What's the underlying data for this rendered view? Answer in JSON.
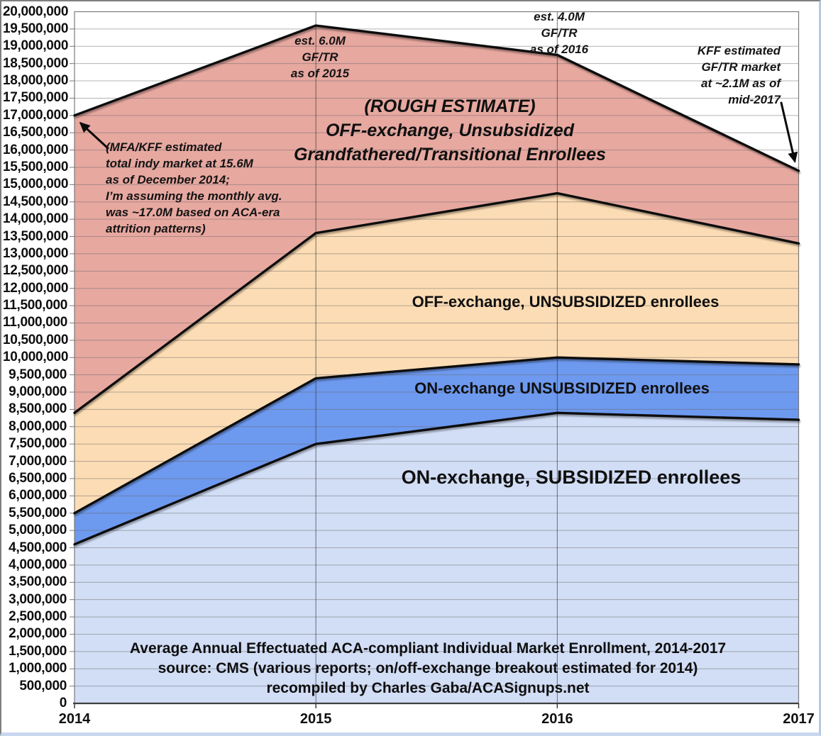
{
  "chart_data": {
    "type": "area",
    "stacked": true,
    "grid": true,
    "legend_position": "none",
    "x_categories": [
      "2014",
      "2015",
      "2016",
      "2017"
    ],
    "y_axis": {
      "min": 0,
      "max": 20000000,
      "step": 500000,
      "tick_format": "comma",
      "zero_label": "0"
    },
    "series": [
      {
        "name": "ON-exchange, SUBSIDIZED enrollees",
        "color": "#d2def6",
        "values": [
          4600000,
          7500000,
          8400000,
          8200000
        ],
        "cumulative": [
          4600000,
          7500000,
          8400000,
          8200000
        ]
      },
      {
        "name": "ON-exchange UNSUBSIDIZED enrollees",
        "color": "#6d99ef",
        "values": [
          900000,
          1900000,
          1600000,
          1600000
        ],
        "cumulative": [
          5500000,
          9400000,
          10000000,
          9800000
        ]
      },
      {
        "name": "OFF-exchange, UNSUBSIDIZED enrollees",
        "color": "#fcdcb4",
        "values": [
          2900000,
          4200000,
          4750000,
          3500000
        ],
        "cumulative": [
          8400000,
          13600000,
          14750000,
          13300000
        ]
      },
      {
        "name": "OFF-exchange, Unsubsidized Grandfathered/Transitional Enrollees (ROUGH ESTIMATE)",
        "color": "#e7a8a0",
        "values": [
          8600000,
          6000000,
          4000000,
          2100000
        ],
        "cumulative": [
          17000000,
          19600000,
          18750000,
          15400000
        ]
      }
    ],
    "area_labels": {
      "gf_tr": {
        "lines": [
          "(ROUGH ESTIMATE)",
          "OFF-exchange, Unsubsidized",
          "Grandfathered/Transitional Enrollees"
        ]
      },
      "off_unsub": {
        "text": "OFF-exchange, UNSUBSIDIZED enrollees"
      },
      "on_unsub": {
        "text": "ON-exchange UNSUBSIDIZED enrollees"
      },
      "on_sub": {
        "text": "ON-exchange, SUBSIDIZED enrollees"
      }
    },
    "annotations": {
      "gf_2015": {
        "lines": [
          "est. 6.0M",
          "GF/TR",
          "as of 2015"
        ]
      },
      "gf_2016": {
        "lines": [
          "est. 4.0M",
          "GF/TR",
          "as of 2016"
        ]
      },
      "kff_2017": {
        "lines": [
          "KFF estimated",
          "GF/TR market",
          "at ~2.1M as of",
          "mid-2017"
        ]
      },
      "mfa_2014": {
        "lines": [
          "(MFA/KFF estimated",
          "total indy market at 15.6M",
          "as of December 2014;",
          "I’m assuming the monthly avg.",
          "was ~17.0M based on ACA-era",
          "attrition patterns)"
        ]
      }
    },
    "footer": {
      "lines": [
        "Average Annual Effectuated ACA-compliant Individual Market Enrollment, 2014-2017",
        "source: CMS (various reports; on/off-exchange breakout estimated for 2014)",
        "recompiled by Charles Gaba/ACASignups.net"
      ]
    },
    "colors": {
      "boundary_line": "#0a0a0a",
      "gridline": "#6a6a6a",
      "plot_border": "#7a7a7a",
      "axis": "#3f3f3f",
      "text": "#0f0f0f"
    }
  }
}
